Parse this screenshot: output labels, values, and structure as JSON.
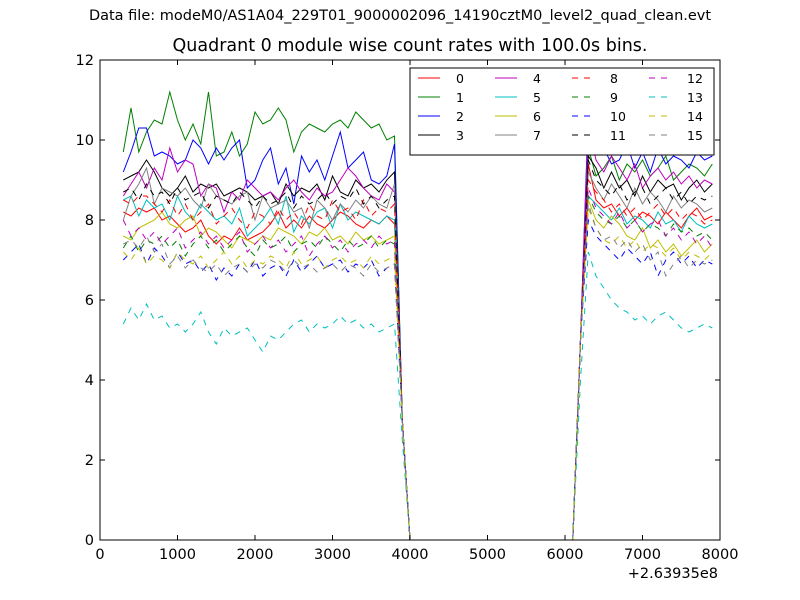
{
  "figure": {
    "suptitle": "Data file: modeM0/AS1A04_229T01_9000002096_14190cztM0_level2_quad_clean.evt"
  },
  "chart_data": {
    "type": "line",
    "title": "Quadrant 0 module wise count rates with 100.0s bins.",
    "xlabel": "",
    "ylabel": "",
    "x_offset_text": "+2.63935e8",
    "xlim": [
      0,
      8000
    ],
    "ylim": [
      0,
      12
    ],
    "xticks": [
      0,
      1000,
      2000,
      3000,
      4000,
      5000,
      6000,
      7000,
      8000
    ],
    "yticks": [
      0,
      2,
      4,
      6,
      8,
      10,
      12
    ],
    "grid": false,
    "legend_position": "top-right",
    "legend_columns": 4,
    "x": [
      300,
      400,
      500,
      600,
      700,
      800,
      900,
      1000,
      1100,
      1200,
      1300,
      1400,
      1500,
      1600,
      1700,
      1800,
      1900,
      2000,
      2100,
      2200,
      2300,
      2400,
      2500,
      2600,
      2700,
      2800,
      2900,
      3000,
      3100,
      3200,
      3300,
      3400,
      3500,
      3600,
      3700,
      3800,
      3900,
      4000,
      4100,
      6100,
      6200,
      6300,
      6400,
      6500,
      6600,
      6700,
      6800,
      6900,
      7000,
      7100,
      7200,
      7300,
      7400,
      7500,
      7600,
      7700,
      7800,
      7900
    ],
    "series": [
      {
        "name": "0",
        "color": "#ff0000",
        "dash": false,
        "values": [
          8.2,
          8.1,
          8.3,
          8.2,
          8.3,
          8.0,
          8.1,
          7.9,
          7.7,
          7.8,
          8.0,
          7.6,
          7.4,
          7.6,
          7.5,
          7.8,
          7.5,
          7.6,
          7.7,
          7.9,
          8.2,
          7.8,
          8.0,
          7.8,
          8.1,
          7.9,
          7.8,
          8.0,
          8.2,
          8.1,
          7.9,
          7.8,
          8.0,
          7.9,
          8.1,
          7.9,
          3.0,
          0.0,
          0.0,
          0.0,
          5.0,
          9.4,
          8.5,
          8.3,
          8.4,
          8.1,
          8.3,
          8.0,
          8.2,
          8.1,
          7.9,
          8.2,
          8.0,
          7.8,
          8.1,
          8.3,
          8.0,
          8.1
        ]
      },
      {
        "name": "1",
        "color": "#008000",
        "dash": false,
        "values": [
          9.7,
          10.8,
          9.7,
          10.2,
          10.5,
          10.4,
          11.2,
          10.5,
          10.0,
          10.4,
          9.9,
          11.2,
          9.6,
          9.7,
          10.2,
          9.6,
          9.9,
          10.7,
          10.4,
          10.5,
          10.8,
          10.5,
          9.7,
          10.2,
          10.4,
          10.3,
          10.2,
          10.4,
          10.5,
          10.3,
          10.7,
          10.5,
          10.3,
          10.4,
          10.0,
          10.1,
          3.0,
          0.0,
          0.0,
          0.0,
          5.0,
          9.8,
          9.1,
          9.3,
          9.6,
          9.0,
          9.4,
          9.2,
          9.5,
          9.1,
          9.3,
          9.6,
          9.0,
          9.2,
          9.4,
          9.3,
          9.1,
          9.4
        ]
      },
      {
        "name": "2",
        "color": "#0000ff",
        "dash": false,
        "values": [
          9.2,
          9.7,
          10.3,
          10.3,
          9.6,
          9.7,
          9.6,
          9.4,
          9.5,
          10.0,
          9.8,
          9.4,
          9.8,
          9.5,
          9.8,
          10.0,
          8.8,
          9.0,
          9.5,
          9.8,
          8.9,
          9.3,
          8.4,
          9.6,
          9.2,
          9.5,
          9.0,
          9.6,
          10.2,
          9.3,
          9.5,
          9.7,
          9.0,
          8.9,
          9.1,
          9.9,
          3.0,
          0.0,
          0.0,
          0.0,
          5.0,
          10.7,
          10.0,
          9.8,
          9.4,
          9.5,
          9.9,
          9.3,
          9.7,
          9.2,
          9.8,
          9.4,
          9.6,
          9.5,
          9.3,
          9.7,
          9.5,
          9.6
        ]
      },
      {
        "name": "3",
        "color": "#000000",
        "dash": false,
        "values": [
          9.0,
          9.1,
          9.2,
          9.5,
          9.2,
          8.8,
          8.6,
          8.8,
          9.1,
          8.7,
          8.9,
          8.8,
          8.9,
          8.6,
          8.7,
          8.8,
          8.7,
          8.5,
          8.6,
          8.7,
          8.4,
          8.9,
          8.6,
          8.8,
          8.7,
          8.9,
          8.5,
          9.1,
          8.7,
          8.6,
          9.0,
          8.8,
          8.9,
          8.7,
          9.0,
          9.2,
          3.0,
          0.0,
          0.0,
          0.0,
          5.0,
          9.6,
          9.3,
          8.8,
          9.2,
          8.8,
          9.0,
          8.6,
          9.1,
          8.7,
          9.0,
          8.8,
          8.9,
          8.5,
          8.8,
          9.0,
          8.7,
          8.9
        ]
      },
      {
        "name": "4",
        "color": "#bf00bf",
        "dash": false,
        "values": [
          8.6,
          8.9,
          9.2,
          8.8,
          9.3,
          9.0,
          9.8,
          9.2,
          9.5,
          9.4,
          8.6,
          8.9,
          8.8,
          8.2,
          8.7,
          8.5,
          9.0,
          8.8,
          8.6,
          8.7,
          8.5,
          8.8,
          9.0,
          8.7,
          8.5,
          8.8,
          8.6,
          8.7,
          9.0,
          9.3,
          9.1,
          8.8,
          8.6,
          8.5,
          8.9,
          8.7,
          3.0,
          0.0,
          0.0,
          0.0,
          5.0,
          10.4,
          9.5,
          9.2,
          9.6,
          9.3,
          9.0,
          9.4,
          8.8,
          9.1,
          9.3,
          9.0,
          9.2,
          8.9,
          9.1,
          8.8,
          9.0,
          8.9
        ]
      },
      {
        "name": "5",
        "color": "#00bfbf",
        "dash": false,
        "values": [
          8.5,
          8.6,
          8.1,
          8.5,
          8.3,
          8.4,
          8.0,
          8.6,
          8.2,
          8.0,
          8.4,
          8.2,
          8.0,
          8.1,
          7.9,
          8.3,
          7.6,
          7.8,
          8.0,
          8.3,
          7.9,
          8.6,
          7.7,
          8.1,
          7.9,
          8.2,
          8.3,
          7.8,
          8.4,
          8.0,
          8.2,
          8.1,
          8.0,
          7.9,
          8.1,
          8.0,
          3.0,
          0.0,
          0.0,
          0.0,
          5.0,
          8.6,
          8.4,
          8.2,
          8.0,
          8.3,
          7.9,
          8.1,
          8.0,
          7.8,
          8.2,
          7.9,
          8.0,
          7.7,
          8.1,
          7.9,
          7.8,
          7.9
        ]
      },
      {
        "name": "6",
        "color": "#bfbf00",
        "dash": false,
        "values": [
          7.6,
          7.5,
          7.8,
          7.9,
          8.0,
          8.2,
          7.9,
          7.8,
          8.0,
          8.1,
          7.6,
          7.8,
          7.7,
          7.5,
          7.3,
          7.6,
          7.5,
          7.4,
          7.6,
          7.5,
          7.8,
          7.7,
          7.6,
          7.4,
          7.7,
          7.6,
          7.8,
          7.5,
          7.6,
          7.4,
          7.7,
          7.5,
          7.6,
          7.4,
          7.5,
          7.6,
          3.0,
          0.0,
          0.0,
          0.0,
          5.0,
          8.5,
          8.0,
          7.8,
          8.1,
          7.9,
          7.6,
          7.5,
          7.8,
          7.3,
          7.5,
          7.2,
          7.4,
          7.1,
          7.3,
          7.5,
          7.2,
          7.4
        ]
      },
      {
        "name": "7",
        "color": "#808080",
        "dash": false,
        "values": [
          8.0,
          8.6,
          8.9,
          9.3,
          8.4,
          8.8,
          8.7,
          8.6,
          8.8,
          8.5,
          8.3,
          8.9,
          8.6,
          8.5,
          8.4,
          8.6,
          8.7,
          8.0,
          8.6,
          8.3,
          8.4,
          8.5,
          8.2,
          8.3,
          7.8,
          8.5,
          8.3,
          8.0,
          8.4,
          8.2,
          8.5,
          8.3,
          8.6,
          8.4,
          8.3,
          8.9,
          3.0,
          0.0,
          0.0,
          0.0,
          5.0,
          9.2,
          8.8,
          8.5,
          8.9,
          8.6,
          8.3,
          8.8,
          8.4,
          8.7,
          8.5,
          8.2,
          8.6,
          8.3,
          8.5,
          8.4,
          8.2,
          8.3
        ]
      },
      {
        "name": "8",
        "color": "#ff0000",
        "dash": true,
        "values": [
          8.5,
          8.4,
          8.6,
          8.6,
          8.4,
          8.2,
          8.5,
          8.1,
          8.4,
          8.0,
          8.2,
          8.4,
          7.9,
          8.1,
          8.3,
          8.0,
          7.8,
          8.2,
          8.1,
          7.9,
          8.3,
          8.0,
          8.2,
          7.9,
          8.4,
          8.1,
          8.0,
          8.5,
          8.2,
          8.3,
          8.0,
          8.5,
          8.1,
          8.3,
          8.2,
          8.4,
          3.0,
          0.0,
          0.0,
          0.0,
          5.0,
          9.0,
          8.7,
          8.5,
          8.2,
          8.4,
          8.1,
          8.3,
          8.0,
          8.2,
          8.4,
          8.1,
          8.3,
          8.0,
          8.2,
          8.1,
          7.9,
          8.0
        ]
      },
      {
        "name": "9",
        "color": "#008000",
        "dash": true,
        "values": [
          7.3,
          7.6,
          7.2,
          7.5,
          7.4,
          7.6,
          7.3,
          7.5,
          7.1,
          7.4,
          7.6,
          7.3,
          7.5,
          7.2,
          7.4,
          7.6,
          7.3,
          7.1,
          7.5,
          7.3,
          7.4,
          7.6,
          7.2,
          7.4,
          7.5,
          7.3,
          7.6,
          7.4,
          7.2,
          7.5,
          7.3,
          7.4,
          7.6,
          7.3,
          7.5,
          7.4,
          3.0,
          0.0,
          0.0,
          0.0,
          5.0,
          8.6,
          8.2,
          8.0,
          7.9,
          8.1,
          7.8,
          8.0,
          7.7,
          7.9,
          7.8,
          7.6,
          7.9,
          7.7,
          7.8,
          7.6,
          7.7,
          7.5
        ]
      },
      {
        "name": "10",
        "color": "#0000ff",
        "dash": true,
        "values": [
          7.0,
          7.2,
          7.4,
          6.9,
          7.3,
          7.1,
          6.8,
          7.2,
          6.9,
          7.0,
          6.7,
          6.9,
          6.5,
          6.8,
          6.6,
          6.9,
          6.7,
          7.0,
          6.6,
          6.8,
          6.9,
          6.6,
          7.0,
          6.7,
          6.9,
          7.1,
          6.8,
          6.9,
          7.0,
          6.7,
          6.9,
          6.8,
          7.0,
          6.6,
          6.8,
          6.9,
          3.0,
          0.0,
          0.0,
          0.0,
          5.0,
          8.0,
          7.6,
          7.4,
          7.2,
          7.0,
          7.3,
          7.1,
          6.9,
          7.2,
          6.6,
          7.0,
          7.2,
          6.9,
          7.1,
          6.8,
          7.0,
          6.9
        ]
      },
      {
        "name": "11",
        "color": "#000000",
        "dash": true,
        "values": [
          8.7,
          8.8,
          8.5,
          8.9,
          8.6,
          8.7,
          8.4,
          8.8,
          8.5,
          8.6,
          8.7,
          8.3,
          8.6,
          8.5,
          8.4,
          8.7,
          8.5,
          8.3,
          8.6,
          8.4,
          8.5,
          8.7,
          8.3,
          8.6,
          8.4,
          8.5,
          8.7,
          8.4,
          8.6,
          8.5,
          8.8,
          8.4,
          8.6,
          8.3,
          8.5,
          8.6,
          3.0,
          0.0,
          0.0,
          0.0,
          5.0,
          9.5,
          9.0,
          8.8,
          8.6,
          8.9,
          8.5,
          8.7,
          8.8,
          8.4,
          8.6,
          8.8,
          8.5,
          8.7,
          8.4,
          8.6,
          8.5,
          8.6
        ]
      },
      {
        "name": "12",
        "color": "#bf00bf",
        "dash": true,
        "values": [
          8.0,
          7.6,
          7.8,
          7.5,
          7.7,
          7.4,
          7.6,
          7.8,
          7.3,
          7.5,
          7.7,
          7.4,
          7.6,
          7.3,
          7.5,
          7.7,
          7.2,
          7.4,
          7.6,
          7.3,
          7.5,
          7.2,
          7.4,
          7.6,
          7.1,
          7.4,
          7.6,
          7.3,
          7.5,
          7.2,
          7.4,
          7.5,
          7.3,
          7.6,
          7.4,
          7.5,
          3.0,
          0.0,
          0.0,
          0.0,
          5.0,
          8.8,
          8.3,
          8.1,
          7.9,
          8.2,
          7.8,
          8.0,
          7.7,
          7.9,
          8.0,
          7.6,
          7.8,
          7.5,
          7.7,
          7.4,
          7.6,
          7.3
        ]
      },
      {
        "name": "13",
        "color": "#00bfbf",
        "dash": true,
        "values": [
          5.4,
          5.8,
          5.5,
          5.9,
          5.5,
          5.6,
          5.3,
          5.4,
          5.2,
          5.4,
          5.7,
          5.2,
          4.9,
          5.3,
          5.1,
          5.2,
          5.3,
          5.0,
          4.7,
          5.1,
          5.0,
          5.2,
          5.4,
          5.5,
          5.2,
          5.4,
          5.3,
          5.4,
          5.6,
          5.4,
          5.5,
          5.3,
          5.4,
          5.2,
          5.3,
          5.4,
          2.5,
          0.0,
          0.0,
          0.0,
          4.0,
          7.2,
          6.6,
          6.3,
          6.0,
          5.8,
          5.7,
          5.5,
          5.6,
          5.4,
          5.6,
          5.7,
          5.5,
          5.3,
          5.2,
          5.3,
          5.4,
          5.3
        ]
      },
      {
        "name": "14",
        "color": "#bfbf00",
        "dash": true,
        "values": [
          7.2,
          7.0,
          7.3,
          6.9,
          7.1,
          7.0,
          6.8,
          7.2,
          7.0,
          6.9,
          7.1,
          6.8,
          7.0,
          7.2,
          6.9,
          7.1,
          6.8,
          7.0,
          6.9,
          7.1,
          7.0,
          6.8,
          7.2,
          6.9,
          7.0,
          7.1,
          6.8,
          7.0,
          7.1,
          6.9,
          7.0,
          6.8,
          7.1,
          6.9,
          7.0,
          7.1,
          3.0,
          0.0,
          0.0,
          0.0,
          5.0,
          8.3,
          7.8,
          7.5,
          7.4,
          7.6,
          7.3,
          7.5,
          7.2,
          7.4,
          7.3,
          7.1,
          7.3,
          7.0,
          7.2,
          7.1,
          7.0,
          7.2
        ]
      },
      {
        "name": "15",
        "color": "#808080",
        "dash": true,
        "values": [
          7.4,
          7.5,
          7.3,
          7.6,
          7.2,
          7.4,
          6.9,
          7.1,
          6.8,
          7.0,
          6.8,
          6.7,
          6.9,
          6.6,
          6.8,
          6.9,
          6.7,
          6.9,
          6.8,
          7.0,
          6.9,
          6.7,
          7.0,
          6.8,
          6.9,
          6.7,
          6.8,
          6.9,
          6.7,
          6.9,
          6.8,
          6.6,
          6.9,
          6.7,
          6.8,
          6.9,
          3.0,
          0.0,
          0.0,
          0.0,
          5.0,
          8.4,
          7.8,
          7.5,
          7.6,
          7.3,
          7.5,
          7.2,
          7.4,
          7.0,
          7.2,
          6.6,
          6.9,
          7.1,
          6.8,
          7.0,
          6.9,
          7.0
        ]
      }
    ]
  }
}
